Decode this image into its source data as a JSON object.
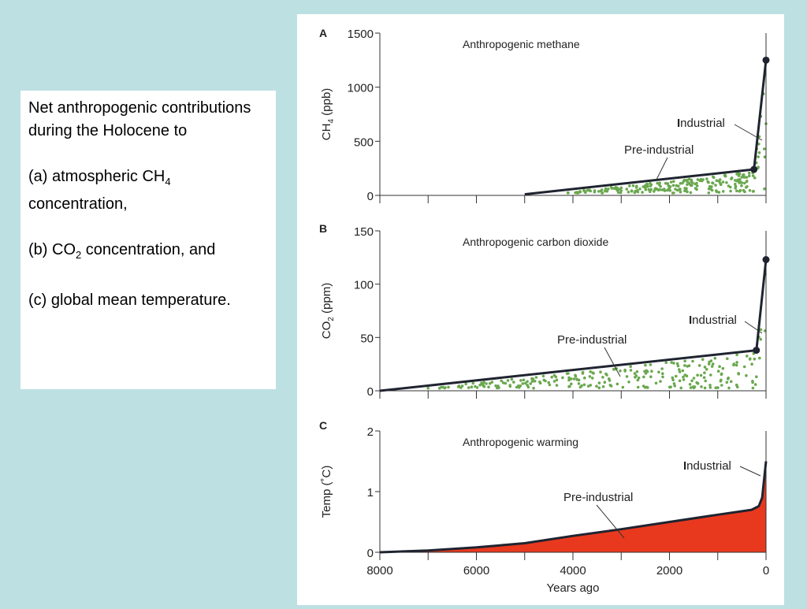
{
  "caption": {
    "intro": "Net anthropogenic contributions during the Holocene to",
    "a_prefix": "(a) atmospheric CH",
    "a_sub": "4",
    "a_suffix": "concentration,",
    "b_prefix": "(b) CO",
    "b_sub": "2",
    "b_suffix": " concentration, and",
    "c": "(c) global mean temperature."
  },
  "colors": {
    "background": "#bde0e3",
    "dots": "#6aa84f",
    "warming_fill": "#e8391f",
    "line": "#1f2430"
  },
  "chart_data": [
    {
      "type": "area",
      "panel": "A",
      "title": "Anthropogenic methane",
      "ylabel_main": "CH",
      "ylabel_sub": "4",
      "ylabel_unit": " (ppb)",
      "xlim": [
        8000,
        0
      ],
      "ylim": [
        0,
        1500
      ],
      "yticks": [
        "0",
        "500",
        "1000",
        "1500"
      ],
      "yticks_values": [
        0,
        500,
        1000,
        1500
      ],
      "xticks_values": [
        8000,
        7000,
        6000,
        5000,
        4000,
        3000,
        2000,
        1000,
        0
      ],
      "x": [
        5000,
        250,
        0
      ],
      "y": [
        10,
        240,
        1250
      ],
      "markers_at": [
        250,
        0
      ],
      "fill": "dots",
      "annotations": [
        {
          "text": "Industrial",
          "bold_initial": "I",
          "rest": "ndustrial"
        },
        {
          "text": "Pre-industrial"
        }
      ]
    },
    {
      "type": "area",
      "panel": "B",
      "title": "Anthropogenic carbon dioxide",
      "ylabel_main": "CO",
      "ylabel_sub": "2",
      "ylabel_unit": " (ppm)",
      "xlim": [
        8000,
        0
      ],
      "ylim": [
        0,
        150
      ],
      "yticks": [
        "0",
        "50",
        "100",
        "150"
      ],
      "yticks_values": [
        0,
        50,
        100,
        150
      ],
      "xticks_values": [
        8000,
        7000,
        6000,
        5000,
        4000,
        3000,
        2000,
        1000,
        0
      ],
      "x": [
        8000,
        200,
        0
      ],
      "y": [
        0,
        38,
        123
      ],
      "markers_at": [
        200,
        0
      ],
      "fill": "dots",
      "annotations": [
        {
          "text": "Industrial",
          "bold_initial": "I",
          "rest": "ndustrial"
        },
        {
          "text": "Pre-industrial"
        }
      ]
    },
    {
      "type": "area",
      "panel": "C",
      "title": "Anthropogenic warming",
      "ylabel_main": "Temp (˚C)",
      "xlabel": "Years ago",
      "xlim": [
        8000,
        0
      ],
      "ylim": [
        0,
        2
      ],
      "yticks": [
        "0",
        "1",
        "2"
      ],
      "yticks_values": [
        0,
        1,
        2
      ],
      "xticks": [
        "8000",
        "6000",
        "4000",
        "2000",
        "0"
      ],
      "xticks_values": [
        8000,
        6000,
        4000,
        2000,
        0
      ],
      "minor_xticks_values": [
        7000,
        5000,
        3000,
        1000
      ],
      "x": [
        8000,
        7000,
        6000,
        5000,
        4000,
        3000,
        2000,
        1000,
        300,
        150,
        80,
        0
      ],
      "y": [
        0,
        0.03,
        0.08,
        0.15,
        0.27,
        0.38,
        0.5,
        0.62,
        0.7,
        0.76,
        0.9,
        1.5
      ],
      "fill": "solid",
      "annotations": [
        {
          "text": "Industrial",
          "bold_initial": "I",
          "rest": "ndustrial"
        },
        {
          "text": "Pre-industrial"
        }
      ]
    }
  ]
}
